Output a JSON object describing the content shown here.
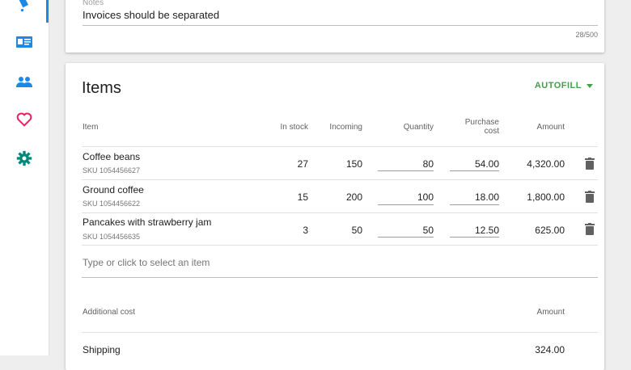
{
  "notes": {
    "label": "Notes",
    "value": "Invoices should be separated",
    "counter": "28/500"
  },
  "items_card": {
    "title": "Items",
    "autofill_label": "AUTOFILL",
    "columns": {
      "item": "Item",
      "in_stock": "In stock",
      "incoming": "Incoming",
      "quantity": "Quantity",
      "purchase_cost_line1": "Purchase",
      "purchase_cost_line2": "cost",
      "amount": "Amount"
    },
    "rows": [
      {
        "name": "Coffee beans",
        "sku": "SKU 1054456627",
        "in_stock": "27",
        "incoming": "150",
        "quantity": "80",
        "cost": "54.00",
        "amount": "4,320.00"
      },
      {
        "name": "Ground coffee",
        "sku": "SKU 1054456622",
        "in_stock": "15",
        "incoming": "200",
        "quantity": "100",
        "cost": "18.00",
        "amount": "1,800.00"
      },
      {
        "name": "Pancakes with strawberry jam",
        "sku": "SKU 1054456635",
        "in_stock": "3",
        "incoming": "50",
        "quantity": "50",
        "cost": "12.50",
        "amount": "625.00"
      }
    ],
    "add_item_placeholder": "Type or click to select an item",
    "additional_cost": {
      "header_label": "Additional cost",
      "header_amount": "Amount",
      "rows": [
        {
          "label": "Shipping",
          "amount": "324.00"
        }
      ]
    }
  },
  "colors": {
    "accent_blue": "#1e88e5",
    "accent_green": "#43a047",
    "heart_pink": "#e91e63",
    "gear_teal": "#00897b"
  }
}
